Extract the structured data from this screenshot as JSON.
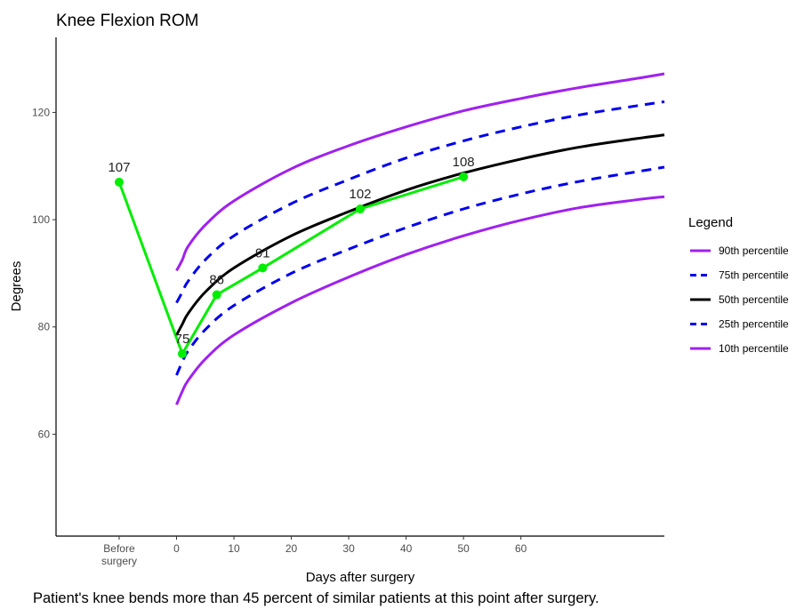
{
  "chart_data": {
    "type": "line",
    "title": "Knee Flexion ROM",
    "xlabel": "Days after surgery",
    "ylabel": "Degrees",
    "ylim": [
      41,
      134
    ],
    "y_ticks": [
      60,
      80,
      100,
      120
    ],
    "x_ticks": [
      {
        "value": -10,
        "label": "Before surgery"
      },
      {
        "value": 0,
        "label": "0"
      },
      {
        "value": 10,
        "label": "10"
      },
      {
        "value": 20,
        "label": "20"
      },
      {
        "value": 30,
        "label": "30"
      },
      {
        "value": 40,
        "label": "40"
      },
      {
        "value": 50,
        "label": "50"
      },
      {
        "value": 60,
        "label": "60"
      }
    ],
    "xlim": [
      -21,
      85
    ],
    "grid": false,
    "legend_position": "right",
    "legend_title": "Legend",
    "percentile_curves": [
      {
        "name": "90th percentile",
        "color": "#a020f0",
        "dash": "solid",
        "x": [
          0,
          1,
          2,
          5,
          10,
          20,
          30,
          40,
          50,
          60,
          70,
          80,
          85
        ],
        "y": [
          90.5,
          92.5,
          95,
          99,
          103.5,
          109.5,
          113.8,
          117.3,
          120.3,
          122.6,
          124.6,
          126.3,
          127.2
        ]
      },
      {
        "name": "75th percentile",
        "color": "#0000ee",
        "dash": "dashed",
        "x": [
          0,
          1,
          2,
          5,
          10,
          20,
          30,
          40,
          50,
          60,
          70,
          80,
          85
        ],
        "y": [
          84.5,
          86.5,
          88.5,
          92.5,
          97,
          103,
          107.5,
          111.5,
          114.7,
          117.3,
          119.5,
          121.2,
          122
        ]
      },
      {
        "name": "50th percentile",
        "color": "#000000",
        "dash": "solid",
        "x": [
          0,
          1,
          2,
          5,
          10,
          20,
          30,
          40,
          50,
          60,
          70,
          80,
          85
        ],
        "y": [
          78.5,
          80.5,
          82.5,
          86.5,
          91,
          97,
          101.5,
          105.5,
          108.7,
          111.3,
          113.5,
          115.1,
          115.8
        ]
      },
      {
        "name": "25th percentile",
        "color": "#0000ee",
        "dash": "dashed",
        "x": [
          0,
          1,
          2,
          5,
          10,
          20,
          30,
          40,
          50,
          60,
          70,
          80,
          85
        ],
        "y": [
          71,
          73.5,
          75.5,
          79.5,
          84,
          90,
          94.5,
          98.5,
          102,
          104.8,
          107.1,
          108.9,
          109.8
        ]
      },
      {
        "name": "10th percentile",
        "color": "#a020f0",
        "dash": "solid",
        "x": [
          0,
          1,
          2,
          5,
          10,
          20,
          30,
          40,
          50,
          60,
          70,
          80,
          85
        ],
        "y": [
          65.5,
          68,
          70,
          74,
          78.5,
          84.5,
          89.3,
          93.5,
          97,
          99.9,
          102.2,
          103.7,
          104.3
        ]
      }
    ],
    "patient_series": {
      "name": "Patient",
      "color": "#00ee00",
      "x": [
        -10,
        1,
        7,
        15,
        32,
        50
      ],
      "y": [
        107,
        75,
        86,
        91,
        102,
        108
      ],
      "labels": [
        "107",
        "75",
        "86",
        "91",
        "102",
        "108"
      ]
    }
  },
  "caption": "Patient's knee bends more than 45 percent of similar patients at this point after surgery."
}
